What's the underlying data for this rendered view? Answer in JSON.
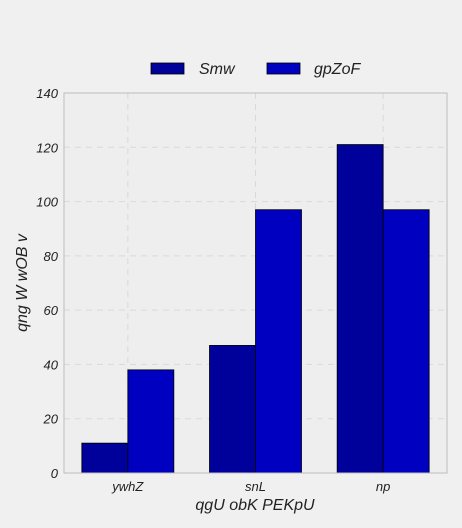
{
  "chart_data": {
    "type": "bar",
    "title": "",
    "xlabel": "qgU  obK PEKpU",
    "ylabel": "qng W wOB v",
    "categories": [
      "ywhZ",
      "snL",
      "np"
    ],
    "series": [
      {
        "name": "Smw",
        "values": [
          11,
          47,
          121
        ],
        "color": "#00009a"
      },
      {
        "name": "gpZoF",
        "values": [
          38,
          97,
          97
        ],
        "color": "#0000c0"
      }
    ],
    "ylim": [
      0,
      140
    ],
    "yticks": [
      0,
      20,
      40,
      60,
      80,
      100,
      120,
      140
    ],
    "grid": true,
    "legend": "top-center"
  },
  "colors": {
    "background": "#f0f0f0",
    "plot_background": "#eeeeee",
    "axis": "#bdbdbd"
  }
}
